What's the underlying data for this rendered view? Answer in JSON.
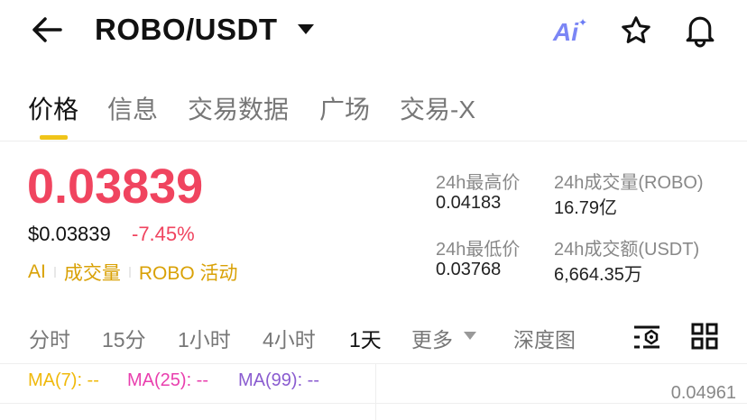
{
  "header": {
    "pair": "ROBO/USDT",
    "icons": [
      "back-arrow-icon",
      "caret-down-icon",
      "ai-icon",
      "star-icon",
      "bell-icon"
    ]
  },
  "tabs": [
    {
      "label": "价格",
      "active": true
    },
    {
      "label": "信息"
    },
    {
      "label": "交易数据"
    },
    {
      "label": "广场"
    },
    {
      "label": "交易-X"
    }
  ],
  "price": {
    "last": "0.03839",
    "usd": "$0.03839",
    "change": "-7.45%",
    "color": "#f0445f"
  },
  "tags": [
    "AI",
    "成交量",
    "ROBO 活动"
  ],
  "stats": {
    "high_label": "24h最高价",
    "high": "0.04183",
    "vol_label": "24h成交量(ROBO)",
    "vol": "16.79亿",
    "low_label": "24h最低价",
    "low": "0.03768",
    "amt_label": "24h成交额(USDT)",
    "amt": "6,664.35万"
  },
  "timeframes": [
    {
      "label": "分时"
    },
    {
      "label": "15分"
    },
    {
      "label": "1小时"
    },
    {
      "label": "4小时"
    },
    {
      "label": "1天",
      "active": true
    },
    {
      "label": "更多"
    },
    {
      "label": "深度图"
    }
  ],
  "ma": {
    "ma7": "MA(7): --",
    "ma25": "MA(25): --",
    "ma99": "MA(99): --",
    "colors": [
      "#f0b90b",
      "#e93fae",
      "#8a5cd0"
    ]
  },
  "chart": {
    "axis_top": "0.04961"
  }
}
